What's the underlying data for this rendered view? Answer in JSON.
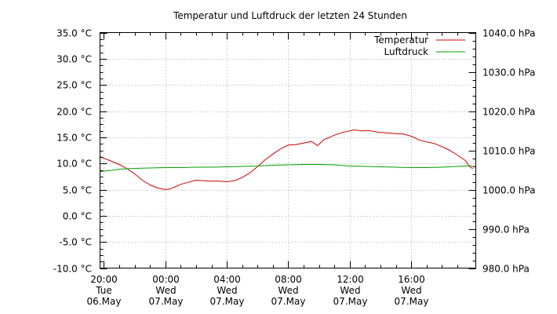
{
  "chart_data": {
    "type": "line",
    "title": "Temperatur und Luftdruck der letzten 24 Stunden",
    "xlabel": "",
    "ylabel": "",
    "y_left": {
      "ylim": [
        -10,
        35
      ],
      "ticks": [
        35,
        30,
        25,
        20,
        15,
        10,
        5,
        0,
        -5,
        -10
      ],
      "tick_labels": [
        "35.0 °C",
        "30.0 °C",
        "25.0 °C",
        "20.0 °C",
        "15.0 °C",
        "10.0 °C",
        "5.0 °C",
        "0.0 °C",
        "-5.0 °C",
        "-10.0 °C"
      ]
    },
    "y_right": {
      "ylim": [
        980,
        1040
      ],
      "ticks": [
        1040,
        1030,
        1020,
        1010,
        1000,
        990,
        980
      ],
      "tick_labels": [
        "1040.0 hPa",
        "1030.0 hPa",
        "1020.0 hPa",
        "1010.0 hPa",
        "1000.0 hPa",
        "990.0 hPa",
        "980.0 hPa"
      ]
    },
    "x_axis": {
      "unit": "hours relative to 06.May 20:00",
      "xlim": [
        -0.25,
        24.2
      ],
      "ticks": [
        {
          "x": 0,
          "time": "20:00",
          "day": "Tue",
          "date": "06.May"
        },
        {
          "x": 4,
          "time": "00:00",
          "day": "Wed",
          "date": "07.May"
        },
        {
          "x": 8,
          "time": "04:00",
          "day": "Wed",
          "date": "07.May"
        },
        {
          "x": 12,
          "time": "08:00",
          "day": "Wed",
          "date": "07.May"
        },
        {
          "x": 16,
          "time": "12:00",
          "day": "Wed",
          "date": "07.May"
        },
        {
          "x": 20,
          "time": "16:00",
          "day": "Wed",
          "date": "07.May"
        }
      ]
    },
    "grid": true,
    "legend_position": "top-right",
    "series": [
      {
        "name": "Temperatur",
        "axis": "left",
        "color": "#cc0000",
        "points": [
          [
            -0.25,
            11.3
          ],
          [
            0.5,
            10.4
          ],
          [
            1,
            9.8
          ],
          [
            1.5,
            9.0
          ],
          [
            2,
            8.0
          ],
          [
            2.5,
            6.8
          ],
          [
            3,
            5.9
          ],
          [
            3.5,
            5.3
          ],
          [
            4.0,
            5.0
          ],
          [
            4.3,
            5.1
          ],
          [
            4.7,
            5.6
          ],
          [
            5,
            6.0
          ],
          [
            5.5,
            6.4
          ],
          [
            6,
            6.8
          ],
          [
            6.5,
            6.7
          ],
          [
            7,
            6.6
          ],
          [
            7.5,
            6.6
          ],
          [
            8,
            6.5
          ],
          [
            8.5,
            6.7
          ],
          [
            9,
            7.3
          ],
          [
            9.5,
            8.2
          ],
          [
            10,
            9.4
          ],
          [
            10.5,
            10.7
          ],
          [
            11,
            11.8
          ],
          [
            11.5,
            12.8
          ],
          [
            12,
            13.5
          ],
          [
            12.5,
            13.6
          ],
          [
            13,
            13.9
          ],
          [
            13.5,
            14.2
          ],
          [
            13.9,
            13.4
          ],
          [
            14.3,
            14.5
          ],
          [
            15,
            15.4
          ],
          [
            15.5,
            15.9
          ],
          [
            16,
            16.2
          ],
          [
            16.3,
            16.4
          ],
          [
            16.8,
            16.2
          ],
          [
            17.2,
            16.3
          ],
          [
            17.8,
            16.0
          ],
          [
            18.5,
            15.8
          ],
          [
            19.5,
            15.6
          ],
          [
            20,
            15.2
          ],
          [
            20.5,
            14.5
          ],
          [
            21,
            14.1
          ],
          [
            21.5,
            13.8
          ],
          [
            22,
            13.2
          ],
          [
            22.5,
            12.5
          ],
          [
            23,
            11.6
          ],
          [
            23.5,
            10.6
          ],
          [
            23.8,
            9.4
          ],
          [
            24.0,
            9.0
          ]
        ]
      },
      {
        "name": "Luftdruck",
        "axis": "right",
        "color": "#00a000",
        "points": [
          [
            -0.25,
            1004.6
          ],
          [
            0.5,
            1004.9
          ],
          [
            1,
            1005.2
          ],
          [
            2,
            1005.4
          ],
          [
            3,
            1005.5
          ],
          [
            4,
            1005.6
          ],
          [
            5,
            1005.6
          ],
          [
            6,
            1005.7
          ],
          [
            7,
            1005.7
          ],
          [
            8,
            1005.8
          ],
          [
            9,
            1005.9
          ],
          [
            10,
            1006.0
          ],
          [
            11,
            1006.2
          ],
          [
            12,
            1006.3
          ],
          [
            13,
            1006.4
          ],
          [
            14,
            1006.4
          ],
          [
            15,
            1006.3
          ],
          [
            16,
            1006.0
          ],
          [
            17,
            1005.9
          ],
          [
            18,
            1005.8
          ],
          [
            19,
            1005.7
          ],
          [
            20,
            1005.6
          ],
          [
            21,
            1005.6
          ],
          [
            22,
            1005.7
          ],
          [
            23,
            1005.9
          ],
          [
            24.0,
            1006.1
          ]
        ]
      }
    ]
  }
}
